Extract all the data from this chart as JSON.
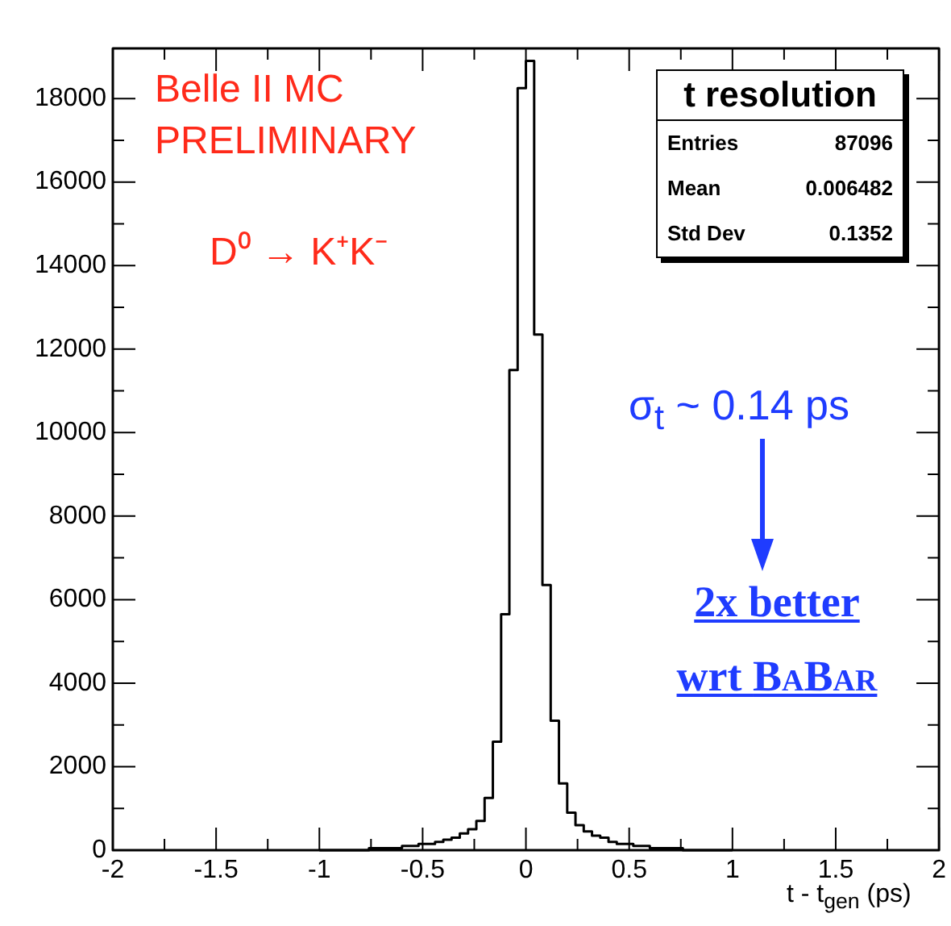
{
  "chart_data": {
    "type": "histogram",
    "title": "t resolution",
    "xlabel": "t - t$_{gen}$ (ps)",
    "bins": [
      -1,
      -0.96,
      -0.92,
      -0.88,
      -0.84,
      -0.8,
      -0.76,
      -0.72,
      -0.68,
      -0.64,
      -0.6,
      -0.56,
      -0.52,
      -0.48,
      -0.44,
      -0.4,
      -0.36,
      -0.32,
      -0.28,
      -0.24,
      -0.2,
      -0.16,
      -0.12,
      -0.08,
      -0.04,
      0,
      0.04,
      0.08,
      0.12,
      0.16,
      0.2,
      0.24,
      0.28,
      0.32,
      0.36,
      0.4,
      0.44,
      0.48,
      0.52,
      0.56,
      0.6,
      0.64,
      0.68,
      0.72,
      0.76,
      0.8,
      0.84,
      0.88,
      0.92,
      0.96,
      1
    ],
    "values": [
      0,
      0,
      0,
      0,
      0,
      0,
      50,
      50,
      50,
      50,
      100,
      100,
      150,
      150,
      200,
      250,
      300,
      400,
      500,
      700,
      1250,
      2600,
      5650,
      11500,
      18250,
      18900,
      12350,
      6350,
      3100,
      1600,
      900,
      600,
      450,
      350,
      300,
      200,
      150,
      150,
      100,
      100,
      50,
      50,
      50,
      50,
      0,
      0,
      0,
      0,
      0,
      0
    ],
    "color": "#000000",
    "xlim": [
      -2,
      2
    ],
    "xticks": [
      -2,
      -1.5,
      -1,
      -0.5,
      0,
      0.5,
      1,
      1.5,
      2
    ],
    "ylim": [
      0,
      19200
    ],
    "yticks": [
      0,
      2000,
      4000,
      6000,
      8000,
      10000,
      12000,
      14000,
      16000,
      18000
    ],
    "annotations": [
      "Belle II MC",
      "PRELIMINARY",
      "D⁰ → K⁺K⁻",
      "Entries 87096",
      "Mean 0.006482",
      "Std Dev 0.1352",
      "σ$_{t}$ ~ 0.14 ps",
      "2x better wrt BaBar"
    ]
  }
}
